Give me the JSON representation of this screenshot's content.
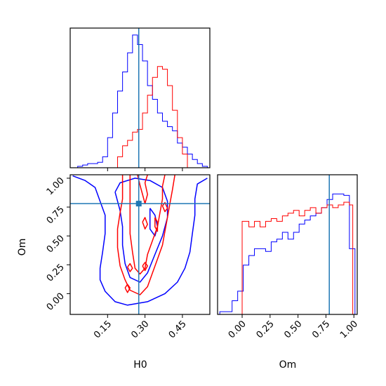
{
  "colors": {
    "series_a": "#0000ff",
    "series_b": "#ff0000",
    "truth": "#1f77b4",
    "frame": "#000000"
  },
  "chart_data": [
    {
      "type": "histogram",
      "panel": "H0 marginal",
      "xlim": [
        0.0,
        0.56
      ],
      "ylim": [
        0,
        1
      ],
      "grid": false,
      "truth": 0.275,
      "xticks": [
        0.15,
        0.3,
        0.45
      ],
      "series": [
        {
          "color": "#0000ff",
          "edges": [
            0.03,
            0.05,
            0.07,
            0.09,
            0.11,
            0.13,
            0.15,
            0.17,
            0.19,
            0.21,
            0.23,
            0.25,
            0.27,
            0.29,
            0.31,
            0.33,
            0.35,
            0.37,
            0.39,
            0.41,
            0.43,
            0.45,
            0.47,
            0.49,
            0.51,
            0.53,
            0.55
          ],
          "values": [
            0.01,
            0.02,
            0.03,
            0.03,
            0.04,
            0.08,
            0.22,
            0.4,
            0.56,
            0.7,
            0.84,
            0.97,
            0.9,
            0.78,
            0.6,
            0.5,
            0.4,
            0.34,
            0.3,
            0.27,
            0.18,
            0.15,
            0.1,
            0.06,
            0.03,
            0.01
          ]
        },
        {
          "color": "#ff0000",
          "edges": [
            0.19,
            0.21,
            0.23,
            0.25,
            0.27,
            0.29,
            0.31,
            0.33,
            0.35,
            0.37,
            0.39,
            0.41,
            0.43,
            0.45,
            0.47
          ],
          "values": [
            0.08,
            0.16,
            0.2,
            0.26,
            0.28,
            0.4,
            0.53,
            0.66,
            0.74,
            0.72,
            0.6,
            0.42,
            0.22,
            0.1
          ]
        }
      ]
    },
    {
      "type": "contour",
      "panel": "H0 vs Om",
      "xlabel": "H0",
      "ylabel": "Om",
      "xlim": [
        0.0,
        0.56
      ],
      "ylim": [
        -0.18,
        1.03
      ],
      "grid": false,
      "truth": [
        0.275,
        0.78
      ],
      "xticks": [
        "0.15",
        "0.30",
        "0.45"
      ],
      "yticks": [
        "0.00",
        "0.25",
        "0.50",
        "0.75",
        "1.00"
      ],
      "series": [
        {
          "color": "#0000ff",
          "contours": [
            [
              [
                0.01,
                1.02
              ],
              [
                0.06,
                0.98
              ],
              [
                0.1,
                0.92
              ],
              [
                0.12,
                0.8
              ],
              [
                0.14,
                0.68
              ],
              [
                0.14,
                0.52
              ],
              [
                0.13,
                0.36
              ],
              [
                0.12,
                0.22
              ],
              [
                0.12,
                0.12
              ],
              [
                0.14,
                0.02
              ],
              [
                0.18,
                -0.07
              ],
              [
                0.23,
                -0.1
              ],
              [
                0.31,
                -0.07
              ],
              [
                0.38,
                0.0
              ],
              [
                0.43,
                0.1
              ],
              [
                0.46,
                0.22
              ],
              [
                0.48,
                0.36
              ],
              [
                0.49,
                0.52
              ],
              [
                0.5,
                0.68
              ],
              [
                0.5,
                0.82
              ],
              [
                0.51,
                0.95
              ],
              [
                0.55,
                1.0
              ]
            ],
            [
              [
                0.18,
                0.88
              ],
              [
                0.2,
                0.96
              ],
              [
                0.26,
                1.0
              ],
              [
                0.32,
                0.98
              ],
              [
                0.37,
                0.92
              ],
              [
                0.39,
                0.8
              ],
              [
                0.39,
                0.66
              ],
              [
                0.37,
                0.5
              ],
              [
                0.34,
                0.34
              ],
              [
                0.31,
                0.18
              ],
              [
                0.28,
                0.1
              ],
              [
                0.24,
                0.14
              ],
              [
                0.22,
                0.26
              ],
              [
                0.21,
                0.42
              ],
              [
                0.21,
                0.58
              ],
              [
                0.2,
                0.72
              ],
              [
                0.18,
                0.88
              ]
            ],
            [
              [
                0.32,
                0.74
              ],
              [
                0.34,
                0.68
              ],
              [
                0.35,
                0.58
              ],
              [
                0.34,
                0.5
              ],
              [
                0.32,
                0.56
              ],
              [
                0.32,
                0.66
              ],
              [
                0.32,
                0.74
              ]
            ]
          ]
        },
        {
          "color": "#ff0000",
          "contours": [
            [
              [
                0.21,
                1.03
              ],
              [
                0.21,
                0.93
              ],
              [
                0.21,
                0.82
              ],
              [
                0.2,
                0.7
              ],
              [
                0.19,
                0.56
              ],
              [
                0.19,
                0.4
              ],
              [
                0.2,
                0.24
              ],
              [
                0.22,
                0.12
              ],
              [
                0.24,
                0.03
              ],
              [
                0.28,
                -0.01
              ],
              [
                0.31,
                0.06
              ],
              [
                0.33,
                0.18
              ],
              [
                0.35,
                0.3
              ],
              [
                0.37,
                0.42
              ],
              [
                0.38,
                0.54
              ],
              [
                0.39,
                0.66
              ],
              [
                0.4,
                0.78
              ],
              [
                0.41,
                0.9
              ],
              [
                0.42,
                1.03
              ]
            ],
            [
              [
                0.24,
                1.03
              ],
              [
                0.24,
                0.94
              ],
              [
                0.24,
                0.82
              ],
              [
                0.24,
                0.68
              ],
              [
                0.24,
                0.52
              ],
              [
                0.25,
                0.36
              ],
              [
                0.26,
                0.22
              ],
              [
                0.28,
                0.17
              ],
              [
                0.3,
                0.22
              ],
              [
                0.31,
                0.34
              ],
              [
                0.33,
                0.46
              ],
              [
                0.35,
                0.58
              ],
              [
                0.36,
                0.7
              ],
              [
                0.37,
                0.82
              ],
              [
                0.37,
                0.93
              ],
              [
                0.38,
                1.03
              ]
            ],
            [
              [
                0.27,
                1.03
              ],
              [
                0.28,
                0.94
              ],
              [
                0.29,
                0.86
              ],
              [
                0.3,
                0.78
              ],
              [
                0.31,
                0.86
              ],
              [
                0.3,
                0.96
              ],
              [
                0.31,
                1.03
              ]
            ],
            [
              [
                0.29,
                0.62
              ],
              [
                0.3,
                0.56
              ],
              [
                0.31,
                0.6
              ],
              [
                0.3,
                0.66
              ],
              [
                0.29,
                0.62
              ]
            ],
            [
              [
                0.34,
                0.66
              ],
              [
                0.34,
                0.58
              ],
              [
                0.35,
                0.54
              ],
              [
                0.35,
                0.62
              ],
              [
                0.34,
                0.66
              ]
            ],
            [
              [
                0.23,
                0.23
              ],
              [
                0.24,
                0.19
              ],
              [
                0.25,
                0.22
              ],
              [
                0.24,
                0.26
              ],
              [
                0.23,
                0.23
              ]
            ],
            [
              [
                0.29,
                0.24
              ],
              [
                0.3,
                0.2
              ],
              [
                0.31,
                0.24
              ],
              [
                0.3,
                0.27
              ],
              [
                0.29,
                0.24
              ]
            ],
            [
              [
                0.37,
                0.76
              ],
              [
                0.38,
                0.71
              ],
              [
                0.39,
                0.74
              ],
              [
                0.38,
                0.79
              ],
              [
                0.37,
                0.76
              ]
            ],
            [
              [
                0.22,
                0.05
              ],
              [
                0.23,
                0.01
              ],
              [
                0.24,
                0.05
              ],
              [
                0.23,
                0.08
              ],
              [
                0.22,
                0.05
              ]
            ]
          ]
        }
      ]
    },
    {
      "type": "histogram",
      "panel": "Om marginal",
      "xlabel": "Om",
      "xlim": [
        -0.22,
        1.03
      ],
      "ylim": [
        0,
        1
      ],
      "grid": false,
      "truth": 0.78,
      "xticks": [
        "0.00",
        "0.25",
        "0.50",
        "0.75",
        "1.00"
      ],
      "series": [
        {
          "color": "#0000ff",
          "edges": [
            -0.2,
            -0.14,
            -0.09,
            -0.04,
            0.01,
            0.06,
            0.11,
            0.16,
            0.21,
            0.26,
            0.31,
            0.36,
            0.41,
            0.46,
            0.51,
            0.56,
            0.61,
            0.66,
            0.71,
            0.76,
            0.81,
            0.86,
            0.91,
            0.96,
            1.01
          ],
          "values": [
            0.02,
            0.02,
            0.1,
            0.17,
            0.36,
            0.43,
            0.48,
            0.48,
            0.46,
            0.53,
            0.55,
            0.6,
            0.55,
            0.6,
            0.66,
            0.69,
            0.72,
            0.74,
            0.78,
            0.84,
            0.88,
            0.88,
            0.87,
            0.48
          ]
        },
        {
          "color": "#ff0000",
          "edges": [
            0.0,
            0.06,
            0.11,
            0.16,
            0.21,
            0.26,
            0.31,
            0.36,
            0.41,
            0.46,
            0.51,
            0.56,
            0.61,
            0.66,
            0.71,
            0.76,
            0.81,
            0.86,
            0.91,
            0.96,
            0.99
          ],
          "values": [
            0.68,
            0.64,
            0.68,
            0.64,
            0.68,
            0.7,
            0.68,
            0.72,
            0.74,
            0.76,
            0.72,
            0.76,
            0.78,
            0.74,
            0.78,
            0.8,
            0.78,
            0.8,
            0.82,
            0.8
          ]
        }
      ]
    }
  ]
}
